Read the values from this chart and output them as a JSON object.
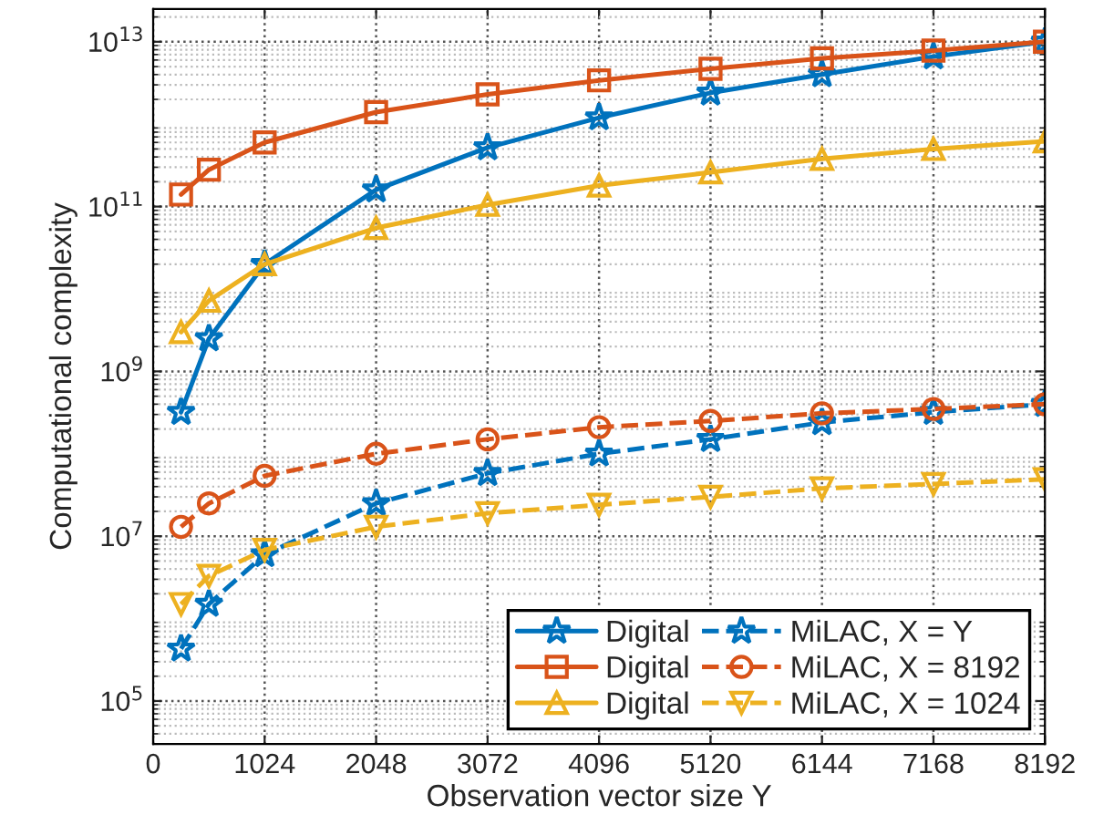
{
  "chart_data": {
    "type": "line",
    "xlabel": "Observation vector size Y",
    "ylabel": "Computational complexity",
    "x": [
      256,
      512,
      1024,
      2048,
      3072,
      4096,
      5120,
      6144,
      7168,
      8192
    ],
    "series": [
      {
        "name": "Digital",
        "color": "#0072bd",
        "marker": "star",
        "line_style": "solid",
        "values": [
          320000000.0,
          2500000000.0,
          20000000000.0,
          160000000000.0,
          520000000000.0,
          1200000000000.0,
          2400000000000.0,
          4000000000000.0,
          6600000000000.0,
          10000000000000.0
        ]
      },
      {
        "name": "Digital",
        "color": "#d95319",
        "marker": "square",
        "line_style": "solid",
        "values": [
          140000000000.0,
          280000000000.0,
          600000000000.0,
          1400000000000.0,
          2300000000000.0,
          3400000000000.0,
          4700000000000.0,
          6300000000000.0,
          7800000000000.0,
          10000000000000.0
        ]
      },
      {
        "name": "Digital",
        "color": "#edb120",
        "marker": "triangle",
        "line_style": "solid",
        "values": [
          3000000000.0,
          7200000000.0,
          20000000000.0,
          55000000000.0,
          105000000000.0,
          180000000000.0,
          260000000000.0,
          380000000000.0,
          500000000000.0,
          620000000000.0
        ]
      },
      {
        "name": "MiLAC, X = Y",
        "color": "#0072bd",
        "marker": "star",
        "line_style": "dashed",
        "values": [
          430000.0,
          1500000.0,
          6000000.0,
          25000000.0,
          58000000.0,
          100000000.0,
          150000000.0,
          240000000.0,
          320000000.0,
          400000000.0
        ]
      },
      {
        "name": "MiLAC, X = 8192",
        "color": "#d95319",
        "marker": "circle",
        "line_style": "dashed",
        "values": [
          13000000.0,
          25000000.0,
          54000000.0,
          100000000.0,
          150000000.0,
          210000000.0,
          250000000.0,
          310000000.0,
          350000000.0,
          400000000.0
        ]
      },
      {
        "name": "MiLAC, X = 1024",
        "color": "#edb120",
        "marker": "triangle_down",
        "line_style": "dashed",
        "values": [
          1500000.0,
          3300000.0,
          6800000.0,
          13000000.0,
          19000000.0,
          24000000.0,
          30000000.0,
          38000000.0,
          43000000.0,
          49000000.0
        ]
      }
    ],
    "log": true,
    "xlim": [
      0,
      8192
    ],
    "xticks": [
      0,
      1024,
      2048,
      3072,
      4096,
      5120,
      6144,
      7168,
      8192
    ],
    "ylim": [
      30000,
      25000000000000
    ],
    "yticks": [
      {
        "value": 100000,
        "label": "10$^{5}$"
      },
      {
        "value": 10000000,
        "label": "10$^{7}$"
      },
      {
        "value": 1000000000,
        "label": "10$^{9}$"
      },
      {
        "value": 100000000000,
        "label": "10$^{11}$"
      },
      {
        "value": 10000000000000,
        "label": "10$^{13}$"
      }
    ],
    "grid": true,
    "legend": "bottom right"
  }
}
